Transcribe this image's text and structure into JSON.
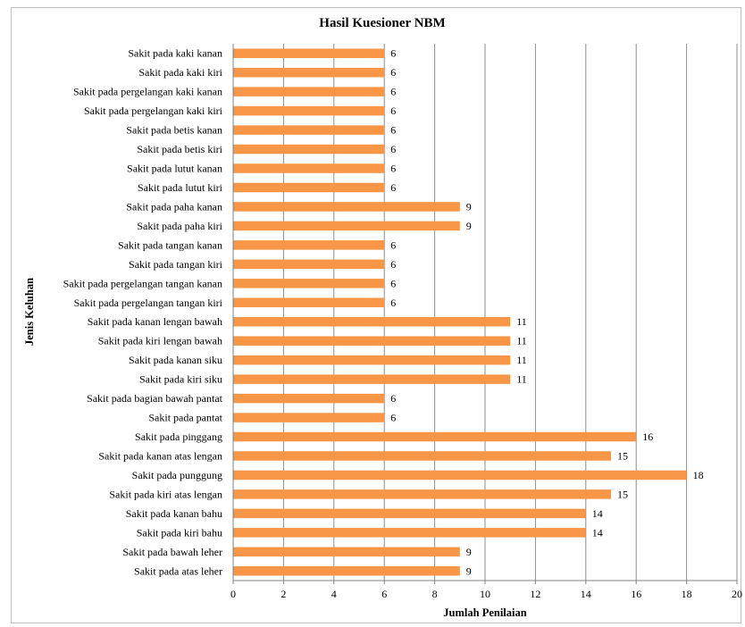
{
  "chart_data": {
    "type": "bar",
    "orientation": "horizontal",
    "title": "Hasil Kuesioner NBM",
    "xlabel": "Jumlah Penilaian",
    "ylabel": "Jenis Keluhan",
    "xlim": [
      0,
      20
    ],
    "xticks": [
      "0",
      "2",
      "4",
      "6",
      "8",
      "10",
      "12",
      "14",
      "16",
      "18",
      "20"
    ],
    "grid": "vertical",
    "bar_color": "#f79646",
    "categories": [
      "Sakit pada kaki kanan",
      "Sakit pada kaki kiri",
      "Sakit pada pergelangan kaki kanan",
      "Sakit pada pergelangan kaki kiri",
      "Sakit pada betis kanan",
      "Sakit pada betis kiri",
      "Sakit pada lutut kanan",
      "Sakit pada lutut kiri",
      "Sakit pada paha kanan",
      "Sakit pada paha kiri",
      "Sakit pada tangan kanan",
      "Sakit pada tangan kiri",
      "Sakit pada pergelangan tangan kanan",
      "Sakit pada pergelangan tangan kiri",
      "Sakit pada kanan lengan bawah",
      "Sakit pada kiri lengan bawah",
      "Sakit pada kanan siku",
      "Sakit pada kiri siku",
      "Sakit pada bagian bawah pantat",
      "Sakit pada pantat",
      "Sakit pada pinggang",
      "Sakit pada kanan atas lengan",
      "Sakit pada punggung",
      "Sakit pada kiri atas lengan",
      "Sakit pada kanan bahu",
      "Sakit pada kiri bahu",
      "Sakit pada bawah leher",
      "Sakit pada atas leher"
    ],
    "values": [
      6,
      6,
      6,
      6,
      6,
      6,
      6,
      6,
      9,
      9,
      6,
      6,
      6,
      6,
      11,
      11,
      11,
      11,
      6,
      6,
      16,
      15,
      18,
      15,
      14,
      14,
      9,
      9
    ]
  }
}
